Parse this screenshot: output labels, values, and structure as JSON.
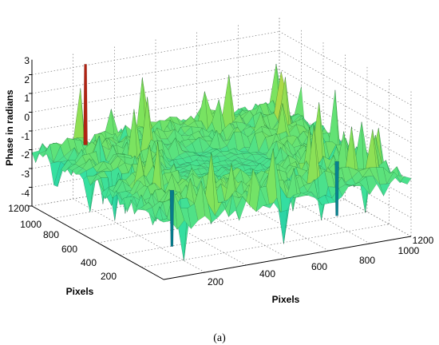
{
  "chart_data": {
    "type": "surface",
    "zlabel": "Phase in radians",
    "xlabel": "Pixels",
    "ylabel": "Pixels",
    "xlim": [
      0,
      1200
    ],
    "ylim": [
      0,
      1200
    ],
    "zlim": [
      -4,
      3.8
    ],
    "x_ticks": [
      "200",
      "400",
      "600",
      "800",
      "1000",
      "1200"
    ],
    "y_ticks": [
      "200",
      "400",
      "600",
      "800",
      "1000",
      "1200"
    ],
    "z_ticks": [
      "3",
      "2",
      "1",
      "0",
      "-1",
      "-2",
      "-3",
      "-4"
    ],
    "grid": true,
    "colormap": [
      "#00607a",
      "#17b8b0",
      "#35e0a0",
      "#7fe35c",
      "#c9d33a",
      "#c98a2a",
      "#b01a10"
    ],
    "surface": {
      "plateau_mean": -0.6,
      "center_mean": -1.0,
      "center_radius_fraction": 0.42,
      "noise_amplitude": 0.5,
      "spikes": [
        {
          "x": 180,
          "y": 1050,
          "z": 3.7
        },
        {
          "x": 1000,
          "y": 300,
          "z": -3.5
        },
        {
          "x": 200,
          "y": 300,
          "z": -3.6
        }
      ]
    }
  },
  "caption": "(a)"
}
